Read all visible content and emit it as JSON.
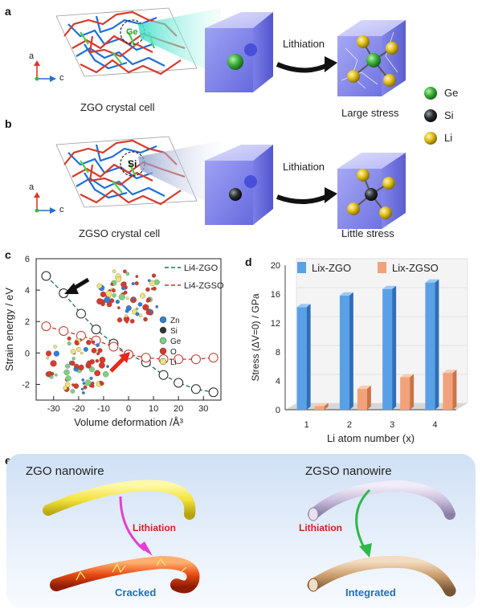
{
  "panel_a": {
    "letter": "a",
    "cell_caption": "ZGO crystal cell",
    "atom_label": "Ge",
    "axis_a": "a",
    "axis_c": "c",
    "arrow_label": "Lithiation",
    "result_caption": "Large stress"
  },
  "panel_b": {
    "letter": "b",
    "cell_caption": "ZGSO crystal cell",
    "atom_label": "Si",
    "axis_a": "a",
    "axis_c": "c",
    "arrow_label": "Lithiation",
    "result_caption": "Little stress"
  },
  "atom_legend": [
    {
      "label": "Ge",
      "color": "#2e9d2e"
    },
    {
      "label": "Si",
      "color": "#222222"
    },
    {
      "label": "Li",
      "color": "#e3c21a"
    }
  ],
  "panel_c": {
    "letter": "c",
    "ylabel": "Strain energy / eV",
    "xlabel": "Volume deformation /Å³",
    "legend": [
      "Li4-ZGO",
      "Li4-ZGSO"
    ],
    "inset_legend": [
      {
        "label": "Zn",
        "color": "#2f7fd6"
      },
      {
        "label": "Si",
        "color": "#333333"
      },
      {
        "label": "Ge",
        "color": "#7ed17e"
      },
      {
        "label": "O",
        "color": "#d83a2a"
      },
      {
        "label": "Li",
        "color": "#f0e27a"
      }
    ]
  },
  "panel_d": {
    "letter": "d",
    "ylabel": "Stress (ΔV=0) / GPa",
    "xlabel": "Li atom number (x)",
    "legend": [
      "Lix-ZGO",
      "Lix-ZGSO"
    ]
  },
  "panel_e": {
    "letter": "e",
    "left_title": "ZGO nanowire",
    "left_arrow": "Lithiation",
    "left_result": "Cracked",
    "right_title": "ZGSO nanowire",
    "right_arrow": "Lithiation",
    "right_result": "Integrated"
  },
  "colors": {
    "zgo_line": "#1f6f5a",
    "zgso_line": "#c0392b",
    "bar_zgo": "#5aa0e6",
    "bar_zgso": "#f2a27a",
    "lithiation_text": "#d42020",
    "result_text": "#1f6fb5"
  },
  "chart_data": [
    {
      "type": "scatter",
      "xlabel": "Volume deformation /Å³",
      "ylabel": "Strain energy / eV",
      "xlim": [
        -37,
        37
      ],
      "ylim": [
        -3,
        6
      ],
      "xticks": [
        -30,
        -20,
        -10,
        0,
        10,
        20,
        30
      ],
      "yticks": [
        -2,
        0,
        2,
        4,
        6
      ],
      "series": [
        {
          "name": "Li4-ZGO",
          "x": [
            -33,
            -26,
            -19,
            -13,
            -6,
            0,
            7,
            14,
            20,
            27,
            34
          ],
          "y": [
            4.9,
            3.8,
            2.5,
            1.5,
            0.6,
            -0.1,
            -0.6,
            -1.4,
            -1.9,
            -2.3,
            -2.5
          ]
        },
        {
          "name": "Li4-ZGSO",
          "x": [
            -33,
            -26,
            -19,
            -13,
            -6,
            0,
            7,
            14,
            20,
            27,
            34
          ],
          "y": [
            1.7,
            1.4,
            1.1,
            0.8,
            0.4,
            -0.1,
            -0.3,
            -0.4,
            -0.4,
            -0.4,
            -0.3
          ]
        }
      ]
    },
    {
      "type": "bar",
      "categories": [
        "1",
        "2",
        "3",
        "4"
      ],
      "xlabel": "Li atom number (x)",
      "ylabel": "Stress (ΔV=0) / GPa",
      "ylim": [
        0,
        20
      ],
      "yticks": [
        0,
        4,
        8,
        12,
        16,
        20
      ],
      "series": [
        {
          "name": "Lix-ZGO",
          "values": [
            14.2,
            15.8,
            16.7,
            17.6
          ]
        },
        {
          "name": "Lix-ZGSO",
          "values": [
            0.5,
            2.9,
            4.5,
            5.1
          ]
        }
      ]
    }
  ]
}
